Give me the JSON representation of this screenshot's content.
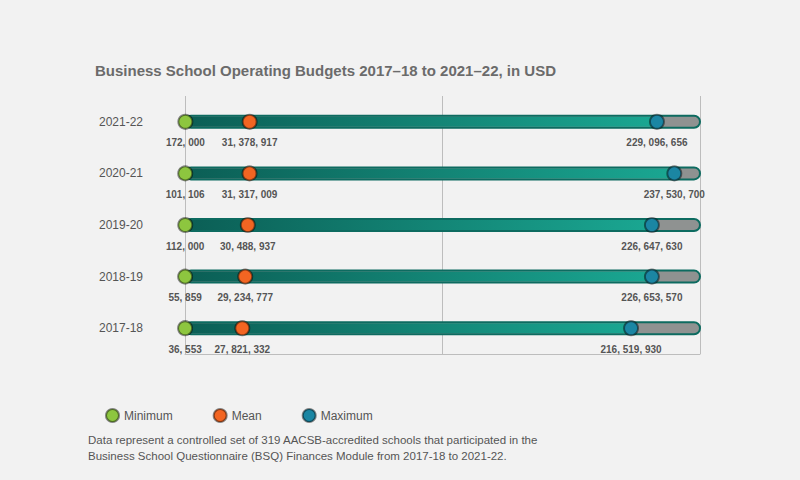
{
  "chart_data": {
    "type": "dumbbell",
    "title": "Business School Operating Budgets 2017–18 to 2021–22, in USD",
    "caption": "Data represent a controlled set of 319 AACSB-accredited schools that participated in the Business School Questionnaire (BSQ) Finances Module from 2017-18 to 2021-22.",
    "categories": [
      "2021-22",
      "2020-21",
      "2019-20",
      "2018-19",
      "2017-18"
    ],
    "series": [
      {
        "name": "Minimum",
        "color": "#8dc63f",
        "values": [
          172000,
          101106,
          112000,
          55859,
          36553
        ],
        "value_labels": [
          "172, 000",
          "101, 106",
          "112, 000",
          "55, 859",
          "36, 553"
        ]
      },
      {
        "name": "Mean",
        "color": "#f26522",
        "values": [
          31378917,
          31317009,
          30488937,
          29234777,
          27821332
        ],
        "value_labels": [
          "31, 378, 917",
          "31, 317, 009",
          "30, 488, 937",
          "29, 234, 777",
          "27, 821, 332"
        ]
      },
      {
        "name": "Maximum",
        "color": "#1b86a3",
        "values": [
          229096656,
          237530700,
          226647630,
          226653570,
          216519930
        ],
        "value_labels": [
          "229, 096, 656",
          "237, 530, 700",
          "226, 647, 630",
          "226, 653, 570",
          "216, 519, 930"
        ]
      }
    ],
    "xlim": [
      0,
      250000000
    ],
    "xticks": [
      0,
      125000000,
      250000000
    ],
    "grid": true,
    "tick_labels": "y",
    "legend": "bottom-left",
    "data_labels": true,
    "marker": "circle"
  }
}
